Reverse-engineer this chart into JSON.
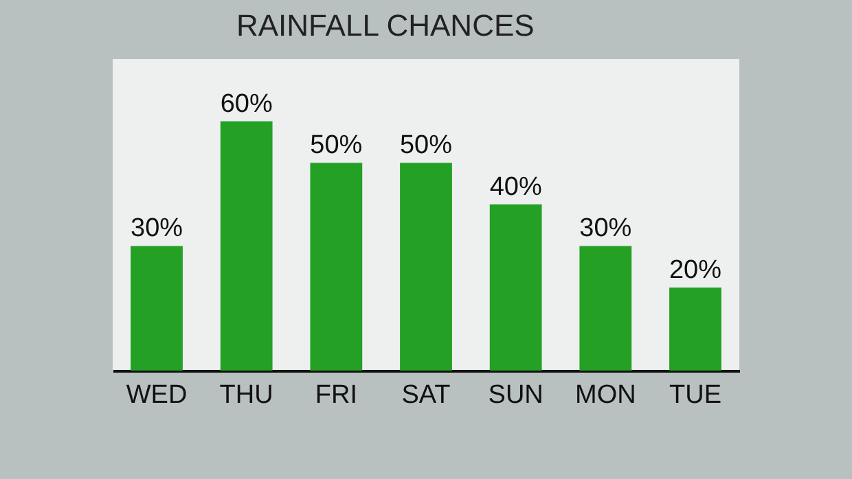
{
  "chart_data": {
    "type": "bar",
    "title": "RAINFALL CHANCES",
    "categories": [
      "WED",
      "THU",
      "FRI",
      "SAT",
      "SUN",
      "MON",
      "TUE"
    ],
    "values": [
      30,
      60,
      50,
      50,
      40,
      30,
      20
    ],
    "value_labels": [
      "30%",
      "60%",
      "50%",
      "50%",
      "40%",
      "30%",
      "20%"
    ],
    "color": "#24a024",
    "ylim": [
      0,
      75
    ]
  }
}
